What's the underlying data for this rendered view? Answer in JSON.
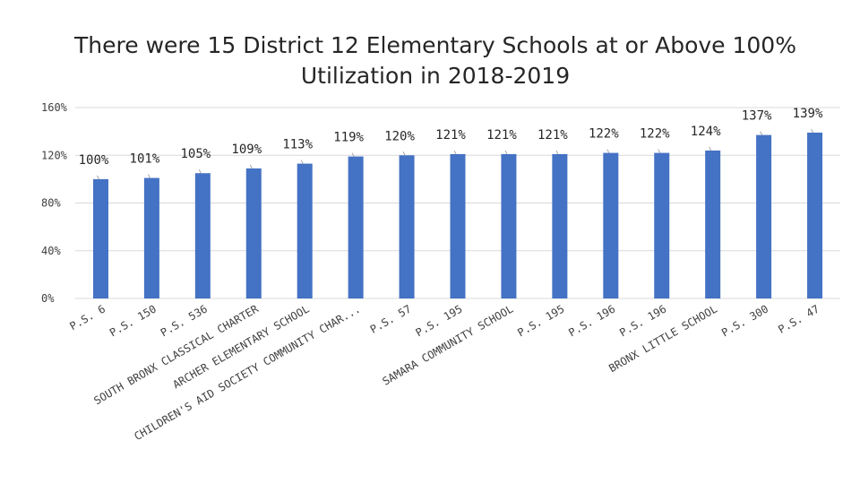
{
  "chart_data": {
    "type": "bar",
    "title_lines": [
      "There were 15 District 12 Elementary Schools at or Above 100%",
      "Utilization in 2018-2019"
    ],
    "categories": [
      "P.S. 6",
      "P.S. 150",
      "P.S. 536",
      "SOUTH BRONX CLASSICAL CHARTER",
      "ARCHER ELEMENTARY SCHOOL",
      "CHILDREN'S AID SOCIETY COMMUNITY CHAR...",
      "P.S. 57",
      "P.S. 195",
      "SAMARA COMMUNITY SCHOOL",
      "P.S. 195",
      "P.S. 196",
      "P.S. 196",
      "BRONX LITTLE SCHOOL",
      "P.S. 300",
      "P.S. 47"
    ],
    "values": [
      100,
      101,
      105,
      109,
      113,
      119,
      120,
      121,
      121,
      121,
      122,
      122,
      124,
      137,
      139
    ],
    "data_labels": [
      "100%",
      "101%",
      "105%",
      "109%",
      "113%",
      "119%",
      "120%",
      "121%",
      "121%",
      "121%",
      "122%",
      "122%",
      "124%",
      "137%",
      "139%"
    ],
    "yticks": [
      0,
      40,
      80,
      120,
      160
    ],
    "ytick_labels": [
      "0%",
      "40%",
      "80%",
      "120%",
      "160%"
    ],
    "ylim": [
      0,
      160
    ],
    "xlabel": "",
    "ylabel": "",
    "grid": true,
    "bar_color": "#4472C4",
    "grid_color": "#D9D9D9",
    "legend": "none"
  }
}
